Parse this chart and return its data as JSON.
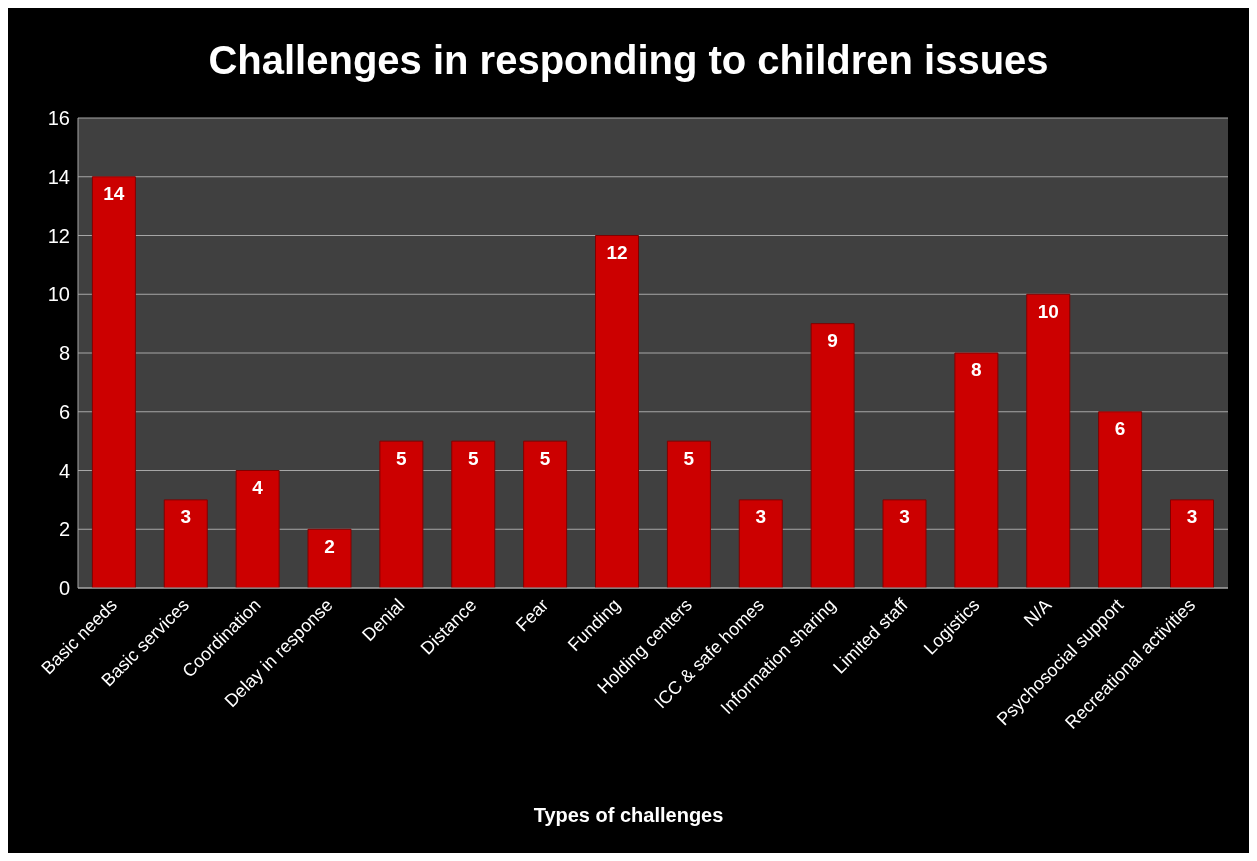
{
  "chart_data": {
    "type": "bar",
    "title": "Challenges in responding to children issues",
    "xlabel": "Types of challenges",
    "categories": [
      "Basic needs",
      "Basic services",
      "Coordination",
      "Delay in response",
      "Denial",
      "Distance",
      "Fear",
      "Funding",
      "Holding centers",
      "ICC & safe homes",
      "Information sharing",
      "Limited staff",
      "Logistics",
      "N/A",
      "Psychosocial support",
      "Recreational activities"
    ],
    "values": [
      14,
      3,
      4,
      2,
      5,
      5,
      5,
      12,
      5,
      3,
      9,
      3,
      8,
      10,
      6,
      3
    ],
    "color": "#cc0000",
    "ylim": [
      0,
      16
    ],
    "yticks": [
      0,
      2,
      4,
      6,
      8,
      10,
      12,
      14,
      16
    ],
    "grid": "y",
    "data_labels": true
  }
}
